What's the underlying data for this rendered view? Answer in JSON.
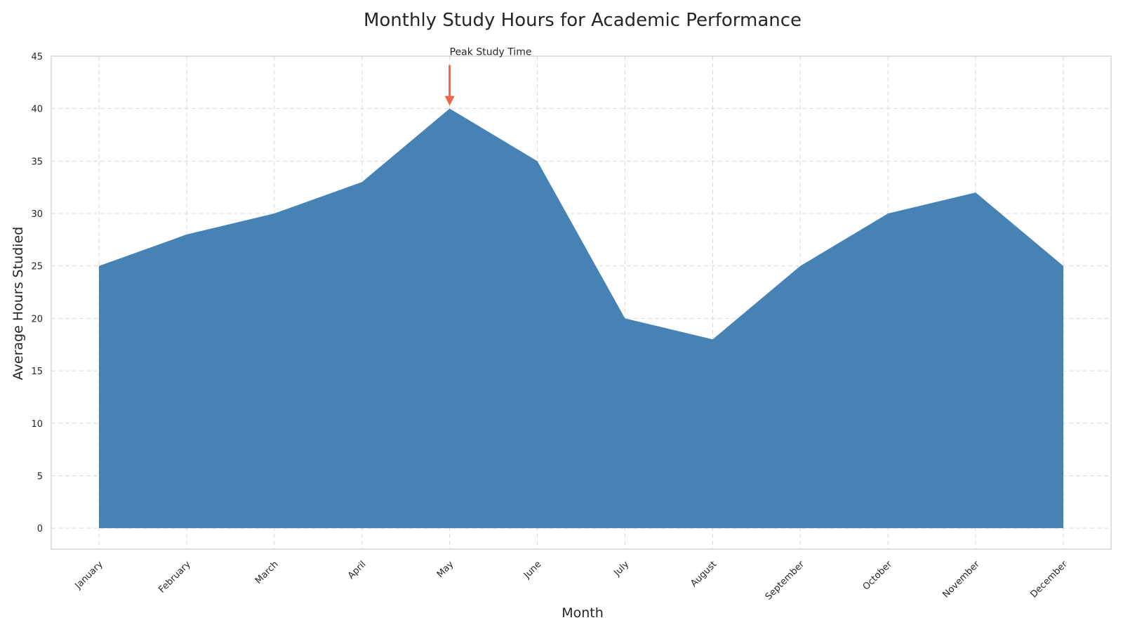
{
  "chart_data": {
    "type": "area",
    "title": "Monthly Study Hours for Academic Performance",
    "xlabel": "Month",
    "ylabel": "Average Hours Studied",
    "categories": [
      "January",
      "February",
      "March",
      "April",
      "May",
      "June",
      "July",
      "August",
      "September",
      "October",
      "November",
      "December"
    ],
    "series": [
      {
        "values": [
          25,
          28,
          30,
          33,
          40,
          35,
          20,
          18,
          25,
          30,
          32,
          25
        ]
      }
    ],
    "ylim": [
      -2,
      45
    ],
    "yticks": [
      0,
      5,
      10,
      15,
      20,
      25,
      30,
      35,
      40,
      45
    ],
    "grid": true,
    "annotations": [
      {
        "text": "Peak Study Time",
        "x": "May",
        "y": 40
      }
    ],
    "colors": {
      "fill": "#4682b4",
      "arrow": "#f0654a",
      "grid": "#d9d9d9",
      "frame": "#cccccc"
    }
  }
}
